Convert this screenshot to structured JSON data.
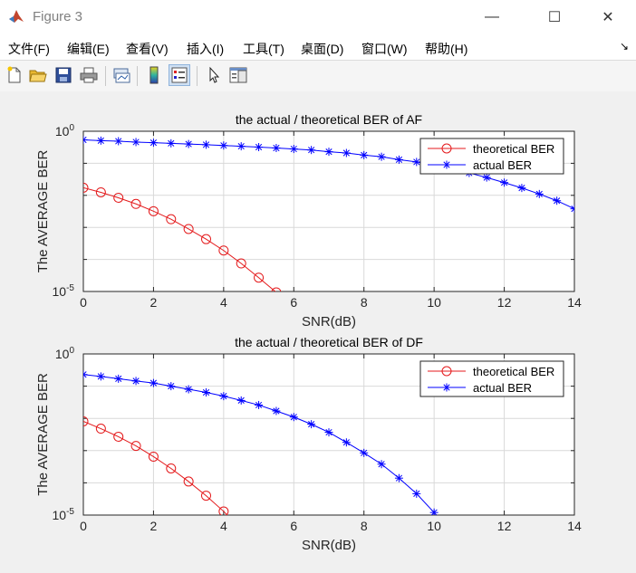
{
  "window": {
    "title": "Figure 3",
    "minimize_glyph": "—",
    "maximize_glyph": "☐",
    "close_glyph": "✕"
  },
  "menu": {
    "items": [
      "文件(F)",
      "编辑(E)",
      "查看(V)",
      "插入(I)",
      "工具(T)",
      "桌面(D)",
      "窗口(W)",
      "帮助(H)"
    ],
    "overflow_glyph": "↘"
  },
  "toolbar": {
    "icons": [
      "new-figure-icon",
      "open-file-icon",
      "save-icon",
      "print-icon",
      "link-plot-icon",
      "insert-colorbar-icon",
      "insert-legend-icon",
      "pointer-icon",
      "property-inspector-icon"
    ]
  },
  "colors": {
    "theoretical": "#e41a1c",
    "actual": "#0000ff",
    "grid": "#d9d9d9"
  },
  "chart_data": [
    {
      "type": "line",
      "title": "the actual / theoretical BER of AF",
      "xlabel": "SNR(dB)",
      "ylabel": "The AVERAGE BER",
      "xlim": [
        0,
        14
      ],
      "ylim": [
        1e-05,
        1
      ],
      "yscale": "log",
      "xticks": [
        "0",
        "2",
        "4",
        "6",
        "8",
        "10",
        "12",
        "14"
      ],
      "yticks": [
        {
          "base": "10",
          "exp": "0"
        },
        {
          "base": "10",
          "exp": "-5"
        }
      ],
      "grid": true,
      "legend": "top-right",
      "series": [
        {
          "name": "theoretical BER",
          "marker": "circle",
          "x": [
            0,
            0.5,
            1,
            1.5,
            2,
            2.5,
            3,
            3.5,
            4,
            4.5,
            5,
            5.5,
            6
          ],
          "y": [
            0.0173,
            0.0124,
            0.0084,
            0.0054,
            0.0032,
            0.0018,
            0.00089,
            0.00043,
            0.00019,
            7.5e-05,
            2.7e-05,
            9.4e-06,
            3e-06
          ]
        },
        {
          "name": "actual BER",
          "marker": "asterisk",
          "x": [
            0,
            0.5,
            1,
            1.5,
            2,
            2.5,
            3,
            3.5,
            4,
            4.5,
            5,
            5.5,
            6,
            6.5,
            7,
            7.5,
            8,
            8.5,
            9,
            9.5,
            10,
            10.5,
            11,
            11.5,
            12,
            12.5,
            13,
            13.5,
            14
          ],
          "y": [
            0.54,
            0.51,
            0.49,
            0.46,
            0.44,
            0.42,
            0.4,
            0.38,
            0.36,
            0.34,
            0.32,
            0.3,
            0.28,
            0.26,
            0.23,
            0.21,
            0.18,
            0.16,
            0.13,
            0.11,
            0.085,
            0.066,
            0.05,
            0.036,
            0.025,
            0.017,
            0.011,
            0.0068,
            0.0038
          ]
        }
      ]
    },
    {
      "type": "line",
      "title": "the actual / theoretical BER of DF",
      "xlabel": "SNR(dB)",
      "ylabel": "The AVERAGE BER",
      "xlim": [
        0,
        14
      ],
      "ylim": [
        1e-05,
        1
      ],
      "yscale": "log",
      "xticks": [
        "0",
        "2",
        "4",
        "6",
        "8",
        "10",
        "12",
        "14"
      ],
      "yticks": [
        {
          "base": "10",
          "exp": "0"
        },
        {
          "base": "10",
          "exp": "-5"
        }
      ],
      "grid": true,
      "legend": "top-right",
      "series": [
        {
          "name": "theoretical BER",
          "marker": "circle",
          "x": [
            0,
            0.5,
            1,
            1.5,
            2,
            2.5,
            3,
            3.5,
            4,
            4.5
          ],
          "y": [
            0.0081,
            0.0048,
            0.0027,
            0.0014,
            0.00065,
            0.00028,
            0.00011,
            4e-05,
            1.3e-05,
            3.5e-06
          ]
        },
        {
          "name": "actual BER",
          "marker": "asterisk",
          "x": [
            0,
            0.5,
            1,
            1.5,
            2,
            2.5,
            3,
            3.5,
            4,
            4.5,
            5,
            5.5,
            6,
            6.5,
            7,
            7.5,
            8,
            8.5,
            9,
            9.5,
            10
          ],
          "y": [
            0.23,
            0.2,
            0.17,
            0.145,
            0.125,
            0.1,
            0.08,
            0.064,
            0.049,
            0.036,
            0.026,
            0.017,
            0.011,
            0.0066,
            0.0037,
            0.0018,
            0.00085,
            0.00038,
            0.00014,
            4.6e-05,
            1.2e-05
          ]
        }
      ]
    }
  ]
}
